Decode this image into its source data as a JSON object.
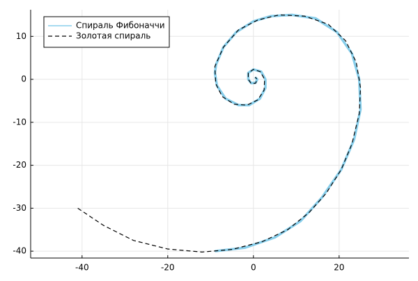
{
  "chart_data": {
    "type": "line",
    "series": [
      {
        "name": "Спираль Фибоначчи",
        "color": "#87ceeb",
        "width": 3.5,
        "dashed": false,
        "x": [
          -9,
          -2,
          5,
          11,
          16,
          20.5,
          23.5,
          25,
          24.7,
          23,
          19.5,
          14.5,
          9,
          4,
          0,
          -4,
          -7,
          -8.7,
          -9,
          -8.5,
          -6.5,
          -3.5,
          -1,
          1.5,
          2.8,
          2.8,
          1.8,
          0,
          -1.2,
          -1.2,
          -0.5,
          0.5,
          0.9,
          0.4
        ],
        "values": [
          -40,
          -39.2,
          -36.8,
          -33,
          -27.5,
          -21,
          -14,
          -7,
          0,
          6,
          11,
          14.2,
          15,
          14.7,
          13.5,
          11,
          7.5,
          3.5,
          1.5,
          -1.5,
          -4.5,
          -6,
          -6,
          -4.5,
          -2,
          0,
          1.8,
          2.3,
          1.5,
          0,
          -0.9,
          -0.8,
          0,
          0.5
        ]
      },
      {
        "name": "Золотая спираль",
        "color": "#000000",
        "width": 1.2,
        "dashed": true,
        "x": [
          -41,
          -35,
          -28,
          -20,
          -12,
          -5,
          2,
          8,
          13,
          17,
          20.5,
          23,
          24.7,
          25,
          24,
          21.5,
          17.5,
          12,
          6,
          1,
          -3.5,
          -7,
          -9,
          -8.8,
          -7.3,
          -4.5,
          -1.5,
          1,
          2.5,
          2.6,
          1.6,
          0,
          -1.2,
          -1.2,
          -0.5,
          0.5,
          0.9,
          0.4
        ],
        "values": [
          -30,
          -34,
          -37.5,
          -39.5,
          -40.2,
          -39.6,
          -37.8,
          -35,
          -31,
          -26.5,
          -21,
          -15,
          -8,
          -2,
          4,
          9,
          12.8,
          14.7,
          15,
          13.8,
          11.5,
          7.5,
          3,
          -1,
          -4,
          -5.8,
          -6,
          -4.8,
          -2.5,
          0,
          1.8,
          2.3,
          1.5,
          0,
          -1,
          -0.9,
          0,
          0.5
        ]
      }
    ],
    "xlim": [
      -52,
      36.3
    ],
    "ylim": [
      -41.6,
      16.2
    ],
    "xticks": [
      -40,
      -20,
      0,
      20
    ],
    "yticks": [
      -40,
      -30,
      -20,
      -10,
      0,
      10
    ],
    "grid": true,
    "legend": "top-left"
  }
}
